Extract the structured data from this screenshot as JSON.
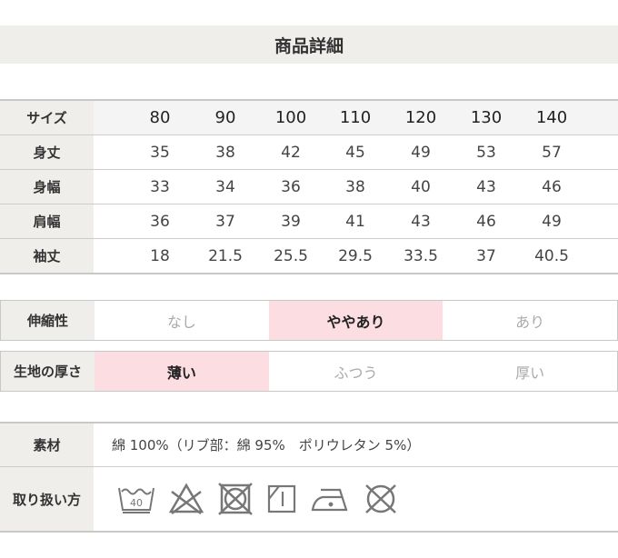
{
  "title": "商品詳細",
  "size_table": {
    "header_label": "サイズ",
    "sizes": [
      "80",
      "90",
      "100",
      "110",
      "120",
      "130",
      "140"
    ],
    "rows": [
      {
        "label": "身丈",
        "values": [
          "35",
          "38",
          "42",
          "45",
          "49",
          "53",
          "57"
        ]
      },
      {
        "label": "身幅",
        "values": [
          "33",
          "34",
          "36",
          "38",
          "40",
          "43",
          "46"
        ]
      },
      {
        "label": "肩幅",
        "values": [
          "36",
          "37",
          "39",
          "41",
          "43",
          "46",
          "49"
        ]
      },
      {
        "label": "袖丈",
        "values": [
          "18",
          "21.5",
          "25.5",
          "29.5",
          "33.5",
          "37",
          "40.5"
        ]
      }
    ]
  },
  "stretch": {
    "label": "伸縮性",
    "options": [
      "なし",
      "ややあり",
      "あり"
    ],
    "selected": "ややあり"
  },
  "thickness": {
    "label": "生地の厚さ",
    "options": [
      "薄い",
      "ふつう",
      "厚い"
    ],
    "selected": "薄い"
  },
  "material": {
    "label": "素材",
    "value": "綿 100%（リブ部：綿 95%　ポリウレタン 5%）"
  },
  "care": {
    "label": "取り扱い方",
    "icons": [
      "wash-40-icon",
      "no-bleach-icon",
      "no-tumble-dry-icon",
      "drip-dry-icon",
      "iron-low-icon",
      "no-dry-clean-icon"
    ],
    "wash_temp": "40"
  },
  "colors": {
    "label_bg": "#efeeeb",
    "selected_bg": "#fbdde2"
  }
}
